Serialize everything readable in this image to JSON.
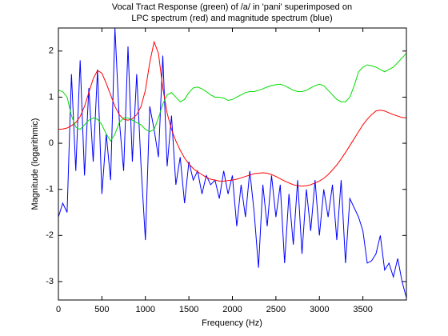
{
  "chart_data": {
    "type": "line",
    "title": [
      "Vocal Tract Response (green) of /a/ in 'pani' superimposed on",
      "LPC spectrum (red) and magnitude spectrum (blue)"
    ],
    "xlabel": "Frequency (Hz)",
    "ylabel": "Magnitude (logarithmic)",
    "xlim": [
      0,
      4000
    ],
    "ylim": [
      -3.4,
      2.5
    ],
    "xticks": [
      0,
      500,
      1000,
      1500,
      2000,
      2500,
      3000,
      3500
    ],
    "yticks": [
      -3,
      -2,
      -1,
      0,
      1,
      2
    ],
    "x": [
      0,
      50,
      100,
      150,
      200,
      250,
      300,
      350,
      400,
      450,
      500,
      550,
      600,
      650,
      700,
      750,
      800,
      850,
      900,
      950,
      1000,
      1050,
      1100,
      1150,
      1200,
      1250,
      1300,
      1350,
      1400,
      1450,
      1500,
      1550,
      1600,
      1650,
      1700,
      1750,
      1800,
      1850,
      1900,
      1950,
      2000,
      2050,
      2100,
      2150,
      2200,
      2250,
      2300,
      2350,
      2400,
      2450,
      2500,
      2550,
      2600,
      2650,
      2700,
      2750,
      2800,
      2850,
      2900,
      2950,
      3000,
      3050,
      3100,
      3150,
      3200,
      3250,
      3300,
      3350,
      3400,
      3450,
      3500,
      3550,
      3600,
      3650,
      3700,
      3750,
      3800,
      3850,
      3900,
      3950,
      4000
    ],
    "series": [
      {
        "color": "#0000ff",
        "values": [
          -1.6,
          -1.3,
          -1.5,
          1.5,
          -0.6,
          1.8,
          -0.7,
          1.2,
          -0.4,
          1.6,
          -1.1,
          0.2,
          -0.8,
          2.5,
          0.5,
          -0.6,
          2.1,
          -0.4,
          1.5,
          -0.5,
          -2.1,
          0.8,
          0.3,
          -0.3,
          1.9,
          -0.5,
          0.6,
          -0.9,
          -0.3,
          -1.3,
          -0.4,
          -0.8,
          -0.6,
          -1.1,
          -0.7,
          -0.9,
          -0.8,
          -1.2,
          -0.6,
          -1.1,
          -0.7,
          -1.8,
          -0.9,
          -1.6,
          -0.6,
          -1.5,
          -2.7,
          -0.9,
          -1.8,
          -0.7,
          -1.6,
          -0.9,
          -2.6,
          -1.1,
          -2.2,
          -0.8,
          -2.4,
          -1.0,
          -1.9,
          -0.8,
          -2.0,
          -1.0,
          -1.6,
          -0.9,
          -2.1,
          -0.8,
          -2.6,
          -1.2,
          -1.4,
          -1.6,
          -1.9,
          -2.6,
          -2.55,
          -2.4,
          -2.0,
          -2.75,
          -2.6,
          -2.9,
          -2.5,
          -3.0,
          -3.35
        ]
      },
      {
        "color": "#ff0000",
        "values": [
          0.3,
          0.31,
          0.33,
          0.38,
          0.45,
          0.58,
          0.8,
          1.1,
          1.4,
          1.58,
          1.52,
          1.3,
          1.05,
          0.8,
          0.62,
          0.52,
          0.5,
          0.53,
          0.62,
          0.8,
          1.15,
          1.75,
          2.2,
          1.95,
          1.2,
          0.65,
          0.3,
          0.05,
          -0.15,
          -0.32,
          -0.45,
          -0.55,
          -0.62,
          -0.68,
          -0.74,
          -0.78,
          -0.8,
          -0.82,
          -0.82,
          -0.81,
          -0.8,
          -0.78,
          -0.75,
          -0.72,
          -0.69,
          -0.66,
          -0.65,
          -0.64,
          -0.65,
          -0.68,
          -0.72,
          -0.77,
          -0.82,
          -0.86,
          -0.9,
          -0.92,
          -0.93,
          -0.92,
          -0.9,
          -0.86,
          -0.82,
          -0.76,
          -0.68,
          -0.58,
          -0.47,
          -0.34,
          -0.2,
          -0.05,
          0.1,
          0.25,
          0.4,
          0.52,
          0.62,
          0.7,
          0.72,
          0.7,
          0.66,
          0.62,
          0.59,
          0.56,
          0.55
        ]
      },
      {
        "color": "#00dd00",
        "values": [
          1.15,
          1.12,
          1.0,
          0.6,
          0.35,
          0.3,
          0.4,
          0.5,
          0.55,
          0.52,
          0.4,
          0.2,
          0.05,
          0.2,
          0.45,
          0.55,
          0.55,
          0.5,
          0.45,
          0.4,
          0.3,
          0.25,
          0.3,
          0.55,
          0.85,
          1.05,
          1.1,
          1.0,
          0.9,
          0.95,
          1.1,
          1.2,
          1.22,
          1.18,
          1.12,
          1.05,
          1.0,
          1.0,
          0.98,
          0.93,
          0.95,
          1.0,
          1.05,
          1.1,
          1.12,
          1.12,
          1.15,
          1.18,
          1.22,
          1.25,
          1.27,
          1.28,
          1.25,
          1.2,
          1.15,
          1.12,
          1.12,
          1.15,
          1.2,
          1.25,
          1.28,
          1.25,
          1.15,
          1.05,
          0.95,
          0.9,
          0.9,
          1.0,
          1.25,
          1.55,
          1.65,
          1.7,
          1.68,
          1.65,
          1.6,
          1.55,
          1.6,
          1.65,
          1.75,
          1.85,
          1.95
        ]
      }
    ]
  }
}
